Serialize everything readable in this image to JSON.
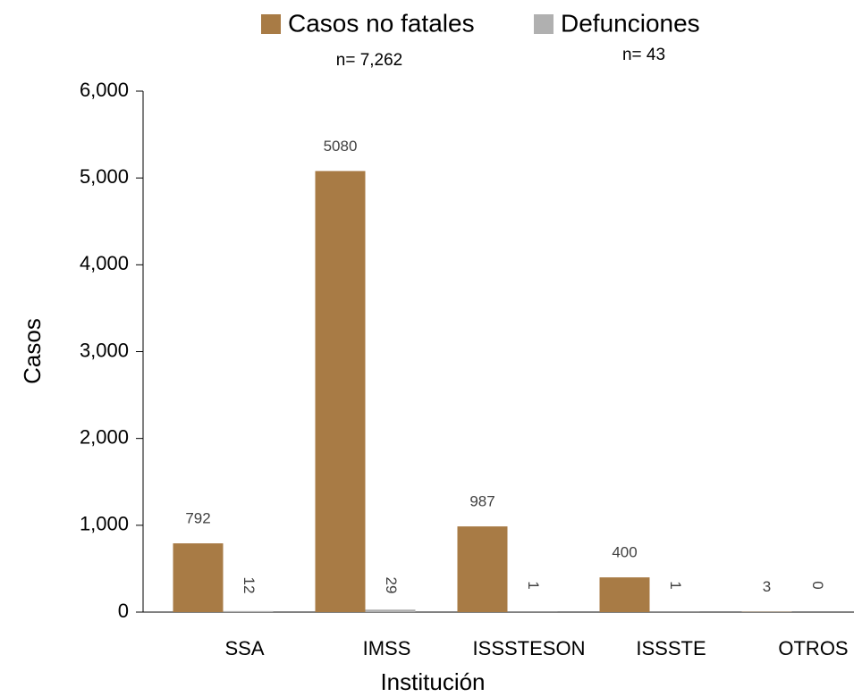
{
  "chart_data": {
    "type": "bar",
    "categories": [
      "SSA",
      "IMSS",
      "ISSSTESON",
      "ISSSTE",
      "OTROS"
    ],
    "series": [
      {
        "name": "Casos no fatales",
        "color": "#a87b45",
        "values": [
          792,
          5080,
          987,
          400,
          3
        ]
      },
      {
        "name": "Defunciones",
        "color": "#b0b0b0",
        "values": [
          12,
          29,
          1,
          1,
          0
        ]
      }
    ],
    "annotations": [
      "n= 7,262",
      "n= 43"
    ],
    "x_label": "Institución",
    "y_label": "Casos",
    "ylim": [
      0,
      6000
    ],
    "yticks": [
      0,
      {
        "value": 1000,
        "label": "1,000"
      },
      {
        "value": 2000,
        "label": "2,000"
      },
      {
        "value": 3000,
        "label": "3,000"
      },
      {
        "value": 4000,
        "label": "4,000"
      },
      {
        "value": 5000,
        "label": "5,000"
      },
      {
        "value": 6000,
        "label": "6,000"
      }
    ],
    "grid": false,
    "legend": "top"
  }
}
